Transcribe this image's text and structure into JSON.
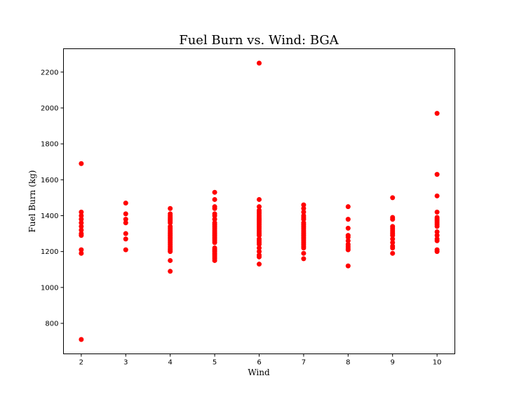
{
  "chart_data": {
    "type": "scatter",
    "title": "Fuel Burn vs. Wind: BGA",
    "xlabel": "Wind",
    "ylabel": "Fuel Burn (kg)",
    "xlim": [
      1.6,
      10.4
    ],
    "ylim": [
      630,
      2330
    ],
    "xticks": [
      2,
      3,
      4,
      5,
      6,
      7,
      8,
      9,
      10
    ],
    "yticks": [
      800,
      1000,
      1200,
      1400,
      1600,
      1800,
      2000,
      2200
    ],
    "marker_color": "#ff0000",
    "grid": false,
    "series": [
      {
        "name": "BGA",
        "points": [
          [
            2,
            710
          ],
          [
            2,
            1190
          ],
          [
            2,
            1210
          ],
          [
            2,
            1290
          ],
          [
            2,
            1300
          ],
          [
            2,
            1320
          ],
          [
            2,
            1340
          ],
          [
            2,
            1360
          ],
          [
            2,
            1380
          ],
          [
            2,
            1400
          ],
          [
            2,
            1420
          ],
          [
            2,
            1690
          ],
          [
            3,
            1210
          ],
          [
            3,
            1270
          ],
          [
            3,
            1300
          ],
          [
            3,
            1360
          ],
          [
            3,
            1380
          ],
          [
            3,
            1410
          ],
          [
            3,
            1470
          ],
          [
            4,
            1090
          ],
          [
            4,
            1150
          ],
          [
            4,
            1200
          ],
          [
            4,
            1210
          ],
          [
            4,
            1220
          ],
          [
            4,
            1230
          ],
          [
            4,
            1240
          ],
          [
            4,
            1250
          ],
          [
            4,
            1260
          ],
          [
            4,
            1270
          ],
          [
            4,
            1280
          ],
          [
            4,
            1290
          ],
          [
            4,
            1300
          ],
          [
            4,
            1310
          ],
          [
            4,
            1320
          ],
          [
            4,
            1330
          ],
          [
            4,
            1340
          ],
          [
            4,
            1360
          ],
          [
            4,
            1370
          ],
          [
            4,
            1380
          ],
          [
            4,
            1390
          ],
          [
            4,
            1400
          ],
          [
            4,
            1410
          ],
          [
            4,
            1440
          ],
          [
            5,
            1150
          ],
          [
            5,
            1160
          ],
          [
            5,
            1170
          ],
          [
            5,
            1180
          ],
          [
            5,
            1190
          ],
          [
            5,
            1200
          ],
          [
            5,
            1210
          ],
          [
            5,
            1220
          ],
          [
            5,
            1250
          ],
          [
            5,
            1260
          ],
          [
            5,
            1270
          ],
          [
            5,
            1280
          ],
          [
            5,
            1290
          ],
          [
            5,
            1300
          ],
          [
            5,
            1310
          ],
          [
            5,
            1320
          ],
          [
            5,
            1330
          ],
          [
            5,
            1340
          ],
          [
            5,
            1350
          ],
          [
            5,
            1360
          ],
          [
            5,
            1380
          ],
          [
            5,
            1400
          ],
          [
            5,
            1410
          ],
          [
            5,
            1440
          ],
          [
            5,
            1450
          ],
          [
            5,
            1490
          ],
          [
            5,
            1530
          ],
          [
            6,
            1130
          ],
          [
            6,
            1170
          ],
          [
            6,
            1180
          ],
          [
            6,
            1200
          ],
          [
            6,
            1220
          ],
          [
            6,
            1240
          ],
          [
            6,
            1250
          ],
          [
            6,
            1260
          ],
          [
            6,
            1270
          ],
          [
            6,
            1290
          ],
          [
            6,
            1300
          ],
          [
            6,
            1310
          ],
          [
            6,
            1320
          ],
          [
            6,
            1330
          ],
          [
            6,
            1340
          ],
          [
            6,
            1350
          ],
          [
            6,
            1360
          ],
          [
            6,
            1370
          ],
          [
            6,
            1380
          ],
          [
            6,
            1390
          ],
          [
            6,
            1400
          ],
          [
            6,
            1410
          ],
          [
            6,
            1420
          ],
          [
            6,
            1430
          ],
          [
            6,
            1450
          ],
          [
            6,
            1490
          ],
          [
            6,
            2250
          ],
          [
            7,
            1160
          ],
          [
            7,
            1190
          ],
          [
            7,
            1220
          ],
          [
            7,
            1230
          ],
          [
            7,
            1240
          ],
          [
            7,
            1250
          ],
          [
            7,
            1260
          ],
          [
            7,
            1270
          ],
          [
            7,
            1280
          ],
          [
            7,
            1290
          ],
          [
            7,
            1300
          ],
          [
            7,
            1310
          ],
          [
            7,
            1320
          ],
          [
            7,
            1330
          ],
          [
            7,
            1340
          ],
          [
            7,
            1350
          ],
          [
            7,
            1360
          ],
          [
            7,
            1380
          ],
          [
            7,
            1390
          ],
          [
            7,
            1400
          ],
          [
            7,
            1420
          ],
          [
            7,
            1440
          ],
          [
            7,
            1460
          ],
          [
            8,
            1120
          ],
          [
            8,
            1210
          ],
          [
            8,
            1220
          ],
          [
            8,
            1230
          ],
          [
            8,
            1240
          ],
          [
            8,
            1260
          ],
          [
            8,
            1280
          ],
          [
            8,
            1290
          ],
          [
            8,
            1330
          ],
          [
            8,
            1380
          ],
          [
            8,
            1450
          ],
          [
            9,
            1190
          ],
          [
            9,
            1220
          ],
          [
            9,
            1230
          ],
          [
            9,
            1250
          ],
          [
            9,
            1270
          ],
          [
            9,
            1290
          ],
          [
            9,
            1300
          ],
          [
            9,
            1310
          ],
          [
            9,
            1320
          ],
          [
            9,
            1330
          ],
          [
            9,
            1340
          ],
          [
            9,
            1380
          ],
          [
            9,
            1390
          ],
          [
            9,
            1500
          ],
          [
            10,
            1200
          ],
          [
            10,
            1210
          ],
          [
            10,
            1260
          ],
          [
            10,
            1270
          ],
          [
            10,
            1290
          ],
          [
            10,
            1310
          ],
          [
            10,
            1340
          ],
          [
            10,
            1350
          ],
          [
            10,
            1360
          ],
          [
            10,
            1370
          ],
          [
            10,
            1380
          ],
          [
            10,
            1390
          ],
          [
            10,
            1420
          ],
          [
            10,
            1510
          ],
          [
            10,
            1630
          ],
          [
            10,
            1970
          ]
        ]
      }
    ]
  }
}
